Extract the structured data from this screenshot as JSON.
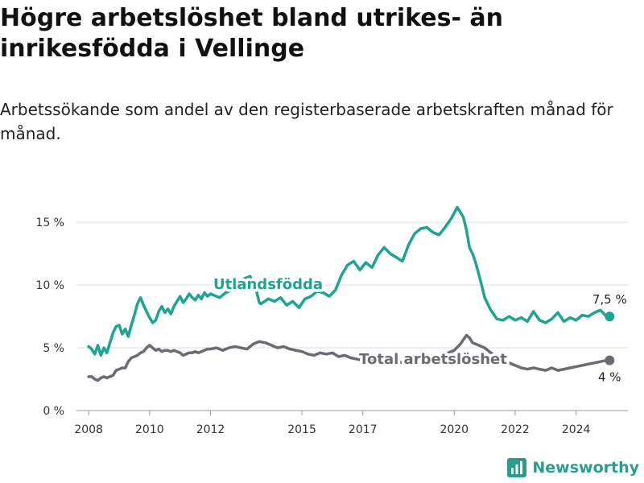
{
  "header": {
    "title": "Högre arbetslöshet bland utrikes- än inrikesfödda i Vellinge",
    "subtitle": "Arbetssökande som andel av den registerbaserade arbetskraften månad för månad."
  },
  "brand": {
    "name": "Newsworthy",
    "icon": "newsworthy-logo-icon",
    "color": "#2a9d8f"
  },
  "chart_data": {
    "type": "line",
    "x_range": [
      2007.6,
      2025.7
    ],
    "ylim": [
      0,
      17
    ],
    "y_ticks": [
      0,
      5,
      10,
      15
    ],
    "y_tick_labels": [
      "0 %",
      "5 %",
      "10 %",
      "15 %"
    ],
    "x_ticks": [
      2008,
      2010,
      2012,
      2015,
      2017,
      2020,
      2022,
      2024
    ],
    "x_tick_labels": [
      "2008",
      "2010",
      "2012",
      "2015",
      "2017",
      "2020",
      "2022",
      "2024"
    ],
    "grid": true,
    "series": [
      {
        "name": "Utlandsfödda",
        "color": "#1fa392",
        "end_label": "7,5 %",
        "x": [
          2008.0,
          2008.1,
          2008.2,
          2008.3,
          2008.4,
          2008.5,
          2008.6,
          2008.7,
          2008.8,
          2008.9,
          2009.0,
          2009.1,
          2009.2,
          2009.3,
          2009.4,
          2009.5,
          2009.6,
          2009.7,
          2009.8,
          2009.9,
          2010.0,
          2010.1,
          2010.2,
          2010.3,
          2010.4,
          2010.5,
          2010.6,
          2010.7,
          2010.8,
          2010.9,
          2011.0,
          2011.1,
          2011.2,
          2011.3,
          2011.4,
          2011.5,
          2011.6,
          2011.7,
          2011.8,
          2011.9,
          2012.0,
          2012.3,
          2012.5,
          2012.7,
          2012.9,
          2013.1,
          2013.3,
          2013.5,
          2013.6,
          2013.65,
          2013.9,
          2014.1,
          2014.3,
          2014.5,
          2014.7,
          2014.9,
          2015.1,
          2015.3,
          2015.5,
          2015.7,
          2015.9,
          2016.1,
          2016.3,
          2016.5,
          2016.7,
          2016.9,
          2017.1,
          2017.3,
          2017.5,
          2017.7,
          2017.9,
          2018.1,
          2018.3,
          2018.5,
          2018.7,
          2018.9,
          2019.1,
          2019.3,
          2019.5,
          2019.7,
          2019.9,
          2020.1,
          2020.3,
          2020.4,
          2020.5,
          2020.6,
          2020.7,
          2020.8,
          2020.9,
          2021.0,
          2021.2,
          2021.4,
          2021.6,
          2021.8,
          2022.0,
          2022.2,
          2022.4,
          2022.6,
          2022.8,
          2023.0,
          2023.2,
          2023.4,
          2023.6,
          2023.8,
          2024.0,
          2024.2,
          2024.4,
          2024.6,
          2024.8,
          2025.0,
          2025.1
        ],
        "values": [
          5.1,
          4.9,
          4.5,
          5.2,
          4.4,
          5.0,
          4.6,
          5.4,
          6.2,
          6.7,
          6.8,
          6.1,
          6.5,
          5.9,
          6.8,
          7.6,
          8.5,
          9.0,
          8.4,
          7.9,
          7.4,
          7.0,
          7.2,
          7.9,
          8.3,
          7.8,
          8.1,
          7.7,
          8.3,
          8.7,
          9.1,
          8.6,
          8.9,
          9.3,
          9.0,
          8.8,
          9.2,
          8.9,
          9.4,
          9.1,
          9.3,
          9.0,
          9.4,
          9.6,
          10.2,
          10.5,
          10.7,
          9.6,
          8.6,
          8.5,
          8.9,
          8.7,
          9.0,
          8.4,
          8.7,
          8.2,
          8.9,
          9.1,
          9.5,
          9.4,
          9.1,
          9.6,
          10.8,
          11.6,
          11.9,
          11.2,
          11.8,
          11.4,
          12.4,
          13.0,
          12.5,
          12.2,
          11.9,
          13.2,
          14.1,
          14.5,
          14.6,
          14.2,
          14.0,
          14.6,
          15.3,
          16.2,
          15.4,
          14.4,
          13.0,
          12.5,
          11.8,
          10.9,
          10.0,
          9.0,
          8.0,
          7.3,
          7.2,
          7.5,
          7.2,
          7.4,
          7.1,
          7.9,
          7.2,
          7.0,
          7.3,
          7.8,
          7.1,
          7.4,
          7.2,
          7.6,
          7.5,
          7.8,
          8.0,
          7.5,
          7.5
        ]
      },
      {
        "name": "Total arbetslöshet",
        "color": "#6b6b73",
        "end_label": "4 %",
        "x": [
          2008.0,
          2008.1,
          2008.2,
          2008.3,
          2008.4,
          2008.5,
          2008.6,
          2008.7,
          2008.8,
          2008.9,
          2009.0,
          2009.1,
          2009.2,
          2009.3,
          2009.4,
          2009.5,
          2009.6,
          2009.7,
          2009.8,
          2009.9,
          2010.0,
          2010.1,
          2010.2,
          2010.3,
          2010.4,
          2010.5,
          2010.6,
          2010.7,
          2010.8,
          2010.9,
          2011.0,
          2011.1,
          2011.2,
          2011.3,
          2011.4,
          2011.5,
          2011.6,
          2011.7,
          2011.8,
          2011.9,
          2012.0,
          2012.2,
          2012.4,
          2012.6,
          2012.8,
          2013.0,
          2013.2,
          2013.4,
          2013.6,
          2013.8,
          2014.0,
          2014.2,
          2014.4,
          2014.6,
          2014.8,
          2015.0,
          2015.2,
          2015.4,
          2015.6,
          2015.8,
          2016.0,
          2016.2,
          2016.4,
          2016.6,
          2016.8,
          2017.0,
          2017.2,
          2017.4,
          2017.6,
          2017.8,
          2018.0,
          2018.2,
          2018.4,
          2018.6,
          2018.8,
          2019.0,
          2019.2,
          2019.4,
          2019.6,
          2019.8,
          2020.0,
          2020.2,
          2020.4,
          2020.5,
          2020.6,
          2020.8,
          2021.0,
          2021.2,
          2021.4,
          2021.6,
          2021.8,
          2022.0,
          2022.2,
          2022.4,
          2022.6,
          2022.8,
          2023.0,
          2023.2,
          2023.4,
          2023.6,
          2023.8,
          2024.0,
          2024.2,
          2024.4,
          2024.6,
          2024.8,
          2025.0,
          2025.1
        ],
        "values": [
          2.7,
          2.7,
          2.5,
          2.4,
          2.6,
          2.7,
          2.6,
          2.7,
          2.8,
          3.2,
          3.3,
          3.4,
          3.4,
          3.9,
          4.2,
          4.3,
          4.4,
          4.6,
          4.7,
          5.0,
          5.2,
          5.0,
          4.8,
          4.9,
          4.7,
          4.8,
          4.8,
          4.7,
          4.8,
          4.7,
          4.6,
          4.4,
          4.5,
          4.6,
          4.6,
          4.7,
          4.6,
          4.7,
          4.8,
          4.9,
          4.9,
          5.0,
          4.8,
          5.0,
          5.1,
          5.0,
          4.9,
          5.3,
          5.5,
          5.4,
          5.2,
          5.0,
          5.1,
          4.9,
          4.8,
          4.7,
          4.5,
          4.4,
          4.6,
          4.5,
          4.6,
          4.3,
          4.4,
          4.2,
          4.1,
          4.0,
          4.0,
          3.9,
          4.0,
          3.9,
          3.8,
          3.9,
          3.7,
          3.8,
          4.0,
          4.2,
          4.4,
          4.3,
          4.5,
          4.6,
          4.8,
          5.3,
          6.0,
          5.8,
          5.4,
          5.2,
          5.0,
          4.6,
          4.3,
          4.1,
          3.8,
          3.6,
          3.4,
          3.3,
          3.4,
          3.3,
          3.2,
          3.4,
          3.2,
          3.3,
          3.4,
          3.5,
          3.6,
          3.7,
          3.8,
          3.9,
          4.0,
          4.0
        ]
      }
    ]
  }
}
